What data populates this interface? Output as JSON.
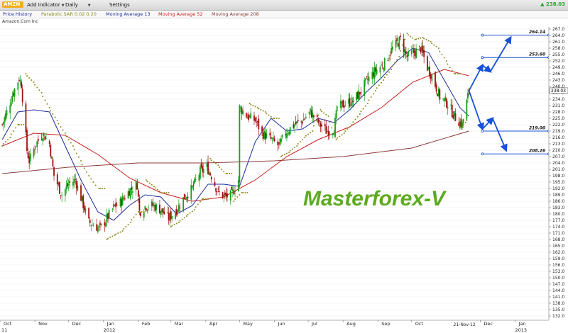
{
  "toolbar": {
    "symbol": "AMZN",
    "add_indicator": "Add Indicator",
    "period": "Daily",
    "settings": "Settings",
    "last_price": "▲ 238.03"
  },
  "legend": {
    "price_history": "Price History",
    "sar": "Parabolic SAR 0.02 0.20",
    "ma13": "Moving Average 13",
    "ma52": "Moving Average 52",
    "ma208": "Moving Average 208"
  },
  "company_name": "Amazon.Com Inc",
  "colors": {
    "up_candle": "#1a9e1a",
    "down_candle": "#a01010",
    "sar": "#8a8a18",
    "ma13": "#1c2a99",
    "ma52": "#c81e1e",
    "ma208": "#8b3a3a",
    "projection": "#1450d8",
    "watermark": "#5cab1f",
    "symbol_bg": "#f4ad1f"
  },
  "chart_data": {
    "type": "candlestick",
    "title": "",
    "watermark": "Masterforex-V",
    "xlabel": "",
    "ylabel": "",
    "ylim": [
      130,
      268
    ],
    "grid": true,
    "x_start": "2011-10-01",
    "x_end": "2013-01-31",
    "y_ticks": [
      132,
      135,
      138,
      141,
      144,
      147,
      150,
      153,
      156,
      159,
      162,
      165,
      168,
      171,
      174,
      177,
      180,
      183,
      186,
      189,
      192,
      195,
      198,
      201,
      204,
      207,
      210,
      213,
      216,
      219,
      222,
      225,
      228,
      231,
      234,
      237,
      240,
      243,
      246,
      249,
      252,
      255,
      258,
      261,
      264,
      267
    ],
    "x_ticks": [
      {
        "date": "2011-10-01",
        "label": "Oct"
      },
      {
        "date": "2011-11-01",
        "label": "Nov"
      },
      {
        "date": "2011-12-01",
        "label": "Dec"
      },
      {
        "date": "2012-01-01",
        "label": "Jan"
      },
      {
        "date": "2012-02-01",
        "label": "Feb"
      },
      {
        "date": "2012-03-01",
        "label": "Mar"
      },
      {
        "date": "2012-04-01",
        "label": "Apr"
      },
      {
        "date": "2012-05-01",
        "label": "May"
      },
      {
        "date": "2012-06-01",
        "label": "Jun"
      },
      {
        "date": "2012-07-01",
        "label": "Jul"
      },
      {
        "date": "2012-08-01",
        "label": "Aug"
      },
      {
        "date": "2012-09-01",
        "label": "Sep"
      },
      {
        "date": "2012-10-01",
        "label": "Oct"
      },
      {
        "date": "2012-12-01",
        "label": "Dec"
      },
      {
        "date": "2013-01-01",
        "label": "Jan"
      }
    ],
    "year_labels": [
      {
        "date": "2011-09-25",
        "label": "11"
      },
      {
        "date": "2012-01-01",
        "label": "2012"
      },
      {
        "date": "2013-01-01",
        "label": "2013"
      }
    ],
    "date_marker": {
      "date": "2012-11-21",
      "label": "21-Nov-12"
    },
    "last_price": 238.03,
    "price_path": [
      {
        "date": "2011-10-03",
        "close": 222
      },
      {
        "date": "2011-10-07",
        "close": 228
      },
      {
        "date": "2011-10-12",
        "close": 236
      },
      {
        "date": "2011-10-18",
        "close": 244
      },
      {
        "date": "2011-10-20",
        "close": 241
      },
      {
        "date": "2011-10-25",
        "close": 210
      },
      {
        "date": "2011-10-27",
        "close": 205
      },
      {
        "date": "2011-11-02",
        "close": 213
      },
      {
        "date": "2011-11-08",
        "close": 218
      },
      {
        "date": "2011-11-14",
        "close": 213
      },
      {
        "date": "2011-11-18",
        "close": 198
      },
      {
        "date": "2011-11-25",
        "close": 189
      },
      {
        "date": "2011-12-01",
        "close": 194
      },
      {
        "date": "2011-12-07",
        "close": 196
      },
      {
        "date": "2011-12-13",
        "close": 186
      },
      {
        "date": "2011-12-19",
        "close": 176
      },
      {
        "date": "2011-12-23",
        "close": 175
      },
      {
        "date": "2011-12-29",
        "close": 173
      },
      {
        "date": "2012-01-04",
        "close": 178
      },
      {
        "date": "2012-01-10",
        "close": 183
      },
      {
        "date": "2012-01-17",
        "close": 186
      },
      {
        "date": "2012-01-24",
        "close": 191
      },
      {
        "date": "2012-01-31",
        "close": 194
      },
      {
        "date": "2012-02-02",
        "close": 181
      },
      {
        "date": "2012-02-08",
        "close": 184
      },
      {
        "date": "2012-02-14",
        "close": 184
      },
      {
        "date": "2012-02-21",
        "close": 182
      },
      {
        "date": "2012-02-28",
        "close": 178
      },
      {
        "date": "2012-03-06",
        "close": 182
      },
      {
        "date": "2012-03-13",
        "close": 188
      },
      {
        "date": "2012-03-20",
        "close": 192
      },
      {
        "date": "2012-03-27",
        "close": 200
      },
      {
        "date": "2012-04-02",
        "close": 202
      },
      {
        "date": "2012-04-06",
        "close": 198
      },
      {
        "date": "2012-04-12",
        "close": 190
      },
      {
        "date": "2012-04-18",
        "close": 188
      },
      {
        "date": "2012-04-24",
        "close": 189
      },
      {
        "date": "2012-04-30",
        "close": 196
      },
      {
        "date": "2012-05-01",
        "close": 230
      },
      {
        "date": "2012-05-08",
        "close": 226
      },
      {
        "date": "2012-05-15",
        "close": 224
      },
      {
        "date": "2012-05-21",
        "close": 218
      },
      {
        "date": "2012-05-29",
        "close": 215
      },
      {
        "date": "2012-06-05",
        "close": 212
      },
      {
        "date": "2012-06-12",
        "close": 219
      },
      {
        "date": "2012-06-19",
        "close": 222
      },
      {
        "date": "2012-06-26",
        "close": 224
      },
      {
        "date": "2012-07-03",
        "close": 228
      },
      {
        "date": "2012-07-10",
        "close": 223
      },
      {
        "date": "2012-07-17",
        "close": 219
      },
      {
        "date": "2012-07-24",
        "close": 220
      },
      {
        "date": "2012-07-27",
        "close": 230
      },
      {
        "date": "2012-08-03",
        "close": 232
      },
      {
        "date": "2012-08-10",
        "close": 233
      },
      {
        "date": "2012-08-17",
        "close": 238
      },
      {
        "date": "2012-08-24",
        "close": 244
      },
      {
        "date": "2012-08-31",
        "close": 248
      },
      {
        "date": "2012-09-07",
        "close": 251
      },
      {
        "date": "2012-09-14",
        "close": 258
      },
      {
        "date": "2012-09-21",
        "close": 262
      },
      {
        "date": "2012-09-27",
        "close": 254
      },
      {
        "date": "2012-10-03",
        "close": 256
      },
      {
        "date": "2012-10-09",
        "close": 258
      },
      {
        "date": "2012-10-15",
        "close": 249
      },
      {
        "date": "2012-10-19",
        "close": 245
      },
      {
        "date": "2012-10-26",
        "close": 235
      },
      {
        "date": "2012-11-02",
        "close": 232
      },
      {
        "date": "2012-11-08",
        "close": 226
      },
      {
        "date": "2012-11-15",
        "close": 222
      },
      {
        "date": "2012-11-21",
        "close": 238
      }
    ],
    "series": [
      {
        "name": "Moving Average 13",
        "values": [
          {
            "date": "2011-10-03",
            "v": 215
          },
          {
            "date": "2011-10-17",
            "v": 228
          },
          {
            "date": "2011-10-31",
            "v": 229
          },
          {
            "date": "2011-11-14",
            "v": 228
          },
          {
            "date": "2011-11-28",
            "v": 212
          },
          {
            "date": "2011-12-12",
            "v": 196
          },
          {
            "date": "2011-12-27",
            "v": 181
          },
          {
            "date": "2012-01-10",
            "v": 177
          },
          {
            "date": "2012-01-24",
            "v": 184
          },
          {
            "date": "2012-02-07",
            "v": 189
          },
          {
            "date": "2012-02-21",
            "v": 188
          },
          {
            "date": "2012-03-06",
            "v": 180
          },
          {
            "date": "2012-03-20",
            "v": 184
          },
          {
            "date": "2012-04-03",
            "v": 194
          },
          {
            "date": "2012-04-17",
            "v": 194
          },
          {
            "date": "2012-05-01",
            "v": 193
          },
          {
            "date": "2012-05-15",
            "v": 214
          },
          {
            "date": "2012-05-29",
            "v": 225
          },
          {
            "date": "2012-06-12",
            "v": 219
          },
          {
            "date": "2012-06-26",
            "v": 220
          },
          {
            "date": "2012-07-10",
            "v": 225
          },
          {
            "date": "2012-07-24",
            "v": 223
          },
          {
            "date": "2012-08-07",
            "v": 229
          },
          {
            "date": "2012-08-21",
            "v": 237
          },
          {
            "date": "2012-09-04",
            "v": 244
          },
          {
            "date": "2012-09-18",
            "v": 252
          },
          {
            "date": "2012-10-02",
            "v": 258
          },
          {
            "date": "2012-10-16",
            "v": 256
          },
          {
            "date": "2012-10-30",
            "v": 243
          },
          {
            "date": "2012-11-13",
            "v": 230
          },
          {
            "date": "2012-11-21",
            "v": 226
          }
        ]
      },
      {
        "name": "Moving Average 52",
        "values": [
          {
            "date": "2011-10-03",
            "v": 212
          },
          {
            "date": "2011-10-31",
            "v": 218
          },
          {
            "date": "2011-11-28",
            "v": 217
          },
          {
            "date": "2011-12-27",
            "v": 208
          },
          {
            "date": "2012-01-24",
            "v": 197
          },
          {
            "date": "2012-02-21",
            "v": 190
          },
          {
            "date": "2012-03-20",
            "v": 186
          },
          {
            "date": "2012-04-17",
            "v": 188
          },
          {
            "date": "2012-05-15",
            "v": 196
          },
          {
            "date": "2012-06-12",
            "v": 207
          },
          {
            "date": "2012-07-10",
            "v": 215
          },
          {
            "date": "2012-08-07",
            "v": 221
          },
          {
            "date": "2012-09-04",
            "v": 230
          },
          {
            "date": "2012-10-02",
            "v": 242
          },
          {
            "date": "2012-10-30",
            "v": 248
          },
          {
            "date": "2012-11-21",
            "v": 245
          }
        ]
      },
      {
        "name": "Moving Average 208",
        "values": [
          {
            "date": "2011-10-03",
            "v": 199
          },
          {
            "date": "2011-12-01",
            "v": 202
          },
          {
            "date": "2012-02-01",
            "v": 204
          },
          {
            "date": "2012-04-01",
            "v": 204
          },
          {
            "date": "2012-06-01",
            "v": 205
          },
          {
            "date": "2012-08-01",
            "v": 207
          },
          {
            "date": "2012-10-01",
            "v": 211
          },
          {
            "date": "2012-11-21",
            "v": 219
          }
        ]
      },
      {
        "name": "Parabolic SAR 0.02 0.20",
        "values": [
          {
            "date": "2011-10-03",
            "v": 212
          },
          {
            "date": "2011-10-10",
            "v": 216
          },
          {
            "date": "2011-10-17",
            "v": 222
          },
          {
            "date": "2011-10-24",
            "v": 246
          },
          {
            "date": "2011-10-31",
            "v": 242
          },
          {
            "date": "2011-11-07",
            "v": 237
          },
          {
            "date": "2011-11-14",
            "v": 230
          },
          {
            "date": "2011-11-21",
            "v": 224
          },
          {
            "date": "2011-11-28",
            "v": 218
          },
          {
            "date": "2011-12-05",
            "v": 212
          },
          {
            "date": "2011-12-12",
            "v": 205
          },
          {
            "date": "2011-12-19",
            "v": 198
          },
          {
            "date": "2011-12-28",
            "v": 192
          },
          {
            "date": "2012-01-04",
            "v": 168
          },
          {
            "date": "2012-01-11",
            "v": 170
          },
          {
            "date": "2012-01-18",
            "v": 172
          },
          {
            "date": "2012-01-25",
            "v": 176
          },
          {
            "date": "2012-02-01",
            "v": 181
          },
          {
            "date": "2012-02-08",
            "v": 196
          },
          {
            "date": "2012-02-15",
            "v": 193
          },
          {
            "date": "2012-02-22",
            "v": 190
          },
          {
            "date": "2012-03-01",
            "v": 174
          },
          {
            "date": "2012-03-08",
            "v": 176
          },
          {
            "date": "2012-03-15",
            "v": 179
          },
          {
            "date": "2012-03-22",
            "v": 182
          },
          {
            "date": "2012-03-29",
            "v": 187
          },
          {
            "date": "2012-04-05",
            "v": 206
          },
          {
            "date": "2012-04-12",
            "v": 203
          },
          {
            "date": "2012-04-19",
            "v": 199
          },
          {
            "date": "2012-04-26",
            "v": 186
          },
          {
            "date": "2012-05-03",
            "v": 190
          },
          {
            "date": "2012-05-10",
            "v": 232
          },
          {
            "date": "2012-05-17",
            "v": 230
          },
          {
            "date": "2012-05-24",
            "v": 228
          },
          {
            "date": "2012-05-31",
            "v": 225
          },
          {
            "date": "2012-06-07",
            "v": 207
          },
          {
            "date": "2012-06-14",
            "v": 209
          },
          {
            "date": "2012-06-21",
            "v": 212
          },
          {
            "date": "2012-06-28",
            "v": 216
          },
          {
            "date": "2012-07-05",
            "v": 219
          },
          {
            "date": "2012-07-12",
            "v": 229
          },
          {
            "date": "2012-07-19",
            "v": 226
          },
          {
            "date": "2012-07-26",
            "v": 215
          },
          {
            "date": "2012-08-02",
            "v": 218
          },
          {
            "date": "2012-08-09",
            "v": 222
          },
          {
            "date": "2012-08-16",
            "v": 227
          },
          {
            "date": "2012-08-23",
            "v": 232
          },
          {
            "date": "2012-08-30",
            "v": 238
          },
          {
            "date": "2012-09-06",
            "v": 243
          },
          {
            "date": "2012-09-13",
            "v": 248
          },
          {
            "date": "2012-09-20",
            "v": 254
          },
          {
            "date": "2012-09-27",
            "v": 265
          },
          {
            "date": "2012-10-04",
            "v": 262
          },
          {
            "date": "2012-10-11",
            "v": 263
          },
          {
            "date": "2012-10-18",
            "v": 261
          },
          {
            "date": "2012-10-25",
            "v": 258
          },
          {
            "date": "2012-11-01",
            "v": 252
          },
          {
            "date": "2012-11-08",
            "v": 246
          },
          {
            "date": "2012-11-15",
            "v": 221
          },
          {
            "date": "2012-11-21",
            "v": 225
          }
        ]
      }
    ],
    "projection": {
      "bull_path": [
        {
          "date": "2012-11-21",
          "v": 238
        },
        {
          "date": "2012-12-03",
          "v": 250
        },
        {
          "date": "2012-12-10",
          "v": 247
        },
        {
          "date": "2012-12-28",
          "v": 263
        }
      ],
      "bear_path": [
        {
          "date": "2012-11-21",
          "v": 238
        },
        {
          "date": "2012-12-03",
          "v": 220
        },
        {
          "date": "2012-12-12",
          "v": 225
        },
        {
          "date": "2012-12-24",
          "v": 210
        }
      ]
    },
    "levels": [
      {
        "value": 264.14,
        "label": "264.14",
        "from": "2012-12-03",
        "to": "2013-01-31"
      },
      {
        "value": 253.6,
        "label": "253.60",
        "from": "2012-12-03",
        "to": "2013-01-31"
      },
      {
        "value": 219.0,
        "label": "219.00",
        "from": "2012-12-03",
        "to": "2013-01-31"
      },
      {
        "value": 208.26,
        "label": "208.26",
        "from": "2012-12-03",
        "to": "2013-01-31"
      }
    ]
  }
}
